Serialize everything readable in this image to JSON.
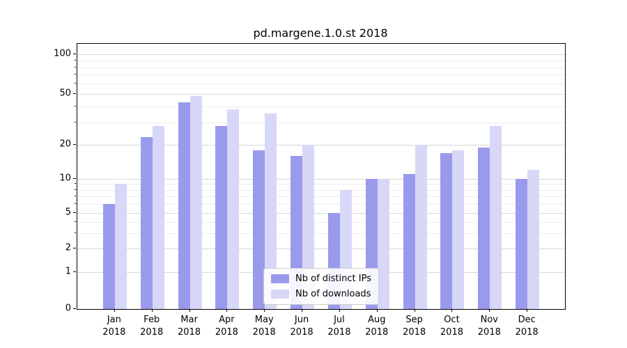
{
  "chart_data": {
    "type": "bar",
    "title": "pd.margene.1.0.st 2018",
    "categories": [
      "Jan",
      "Feb",
      "Mar",
      "Apr",
      "May",
      "Jun",
      "Jul",
      "Aug",
      "Sep",
      "Oct",
      "Nov",
      "Dec"
    ],
    "x_sublabel": "2018",
    "series": [
      {
        "name": "Nb of distinct IPs",
        "color": "#9a9aec",
        "values": [
          6,
          23,
          43,
          28,
          18,
          16,
          5,
          10,
          11,
          17,
          19,
          10
        ]
      },
      {
        "name": "Nb of downloads",
        "color": "#d7d7f7",
        "values": [
          9,
          28,
          48,
          38,
          35,
          20,
          8,
          10,
          20,
          18,
          28,
          12
        ]
      }
    ],
    "yscale": "symlog",
    "yticks": [
      0,
      1,
      2,
      5,
      10,
      20,
      50,
      100
    ],
    "minor_yticks": [
      3,
      4,
      6,
      7,
      8,
      9,
      30,
      40,
      60,
      70,
      80,
      90
    ],
    "ylim": [
      0,
      115
    ],
    "xlabel": "",
    "ylabel": "",
    "grid": true,
    "legend_position": "lower center"
  }
}
